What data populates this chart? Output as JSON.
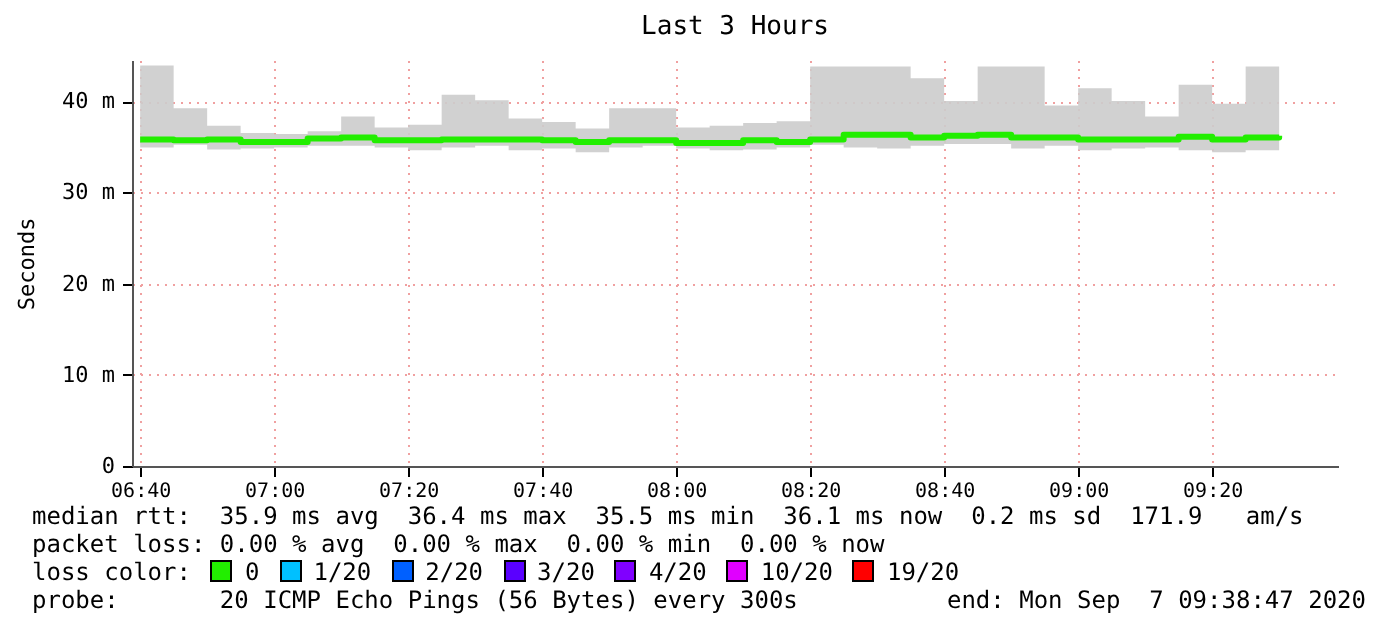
{
  "chart_data": {
    "type": "step",
    "title": "Last 3 Hours",
    "ylabel": "Seconds",
    "legend_title": "loss color:",
    "legend": "bottom",
    "grid": true,
    "x": [
      "2020-09-07T06:40",
      "2020-09-07T06:45",
      "2020-09-07T06:50",
      "2020-09-07T06:55",
      "2020-09-07T07:00",
      "2020-09-07T07:05",
      "2020-09-07T07:10",
      "2020-09-07T07:15",
      "2020-09-07T07:20",
      "2020-09-07T07:25",
      "2020-09-07T07:30",
      "2020-09-07T07:35",
      "2020-09-07T07:40",
      "2020-09-07T07:45",
      "2020-09-07T07:50",
      "2020-09-07T07:55",
      "2020-09-07T08:00",
      "2020-09-07T08:05",
      "2020-09-07T08:10",
      "2020-09-07T08:15",
      "2020-09-07T08:20",
      "2020-09-07T08:25",
      "2020-09-07T08:30",
      "2020-09-07T08:35",
      "2020-09-07T08:40",
      "2020-09-07T08:45",
      "2020-09-07T08:50",
      "2020-09-07T08:55",
      "2020-09-07T09:00",
      "2020-09-07T09:05",
      "2020-09-07T09:10",
      "2020-09-07T09:15",
      "2020-09-07T09:20",
      "2020-09-07T09:25",
      "2020-09-07T09:30"
    ],
    "xlim": [
      "2020-09-07T06:38:47",
      "2020-09-07T09:38:47"
    ],
    "xticks": [
      {
        "value": "2020-09-07T06:40",
        "label": "06:40"
      },
      {
        "value": "2020-09-07T07:00",
        "label": "07:00"
      },
      {
        "value": "2020-09-07T07:20",
        "label": "07:20"
      },
      {
        "value": "2020-09-07T07:40",
        "label": "07:40"
      },
      {
        "value": "2020-09-07T08:00",
        "label": "08:00"
      },
      {
        "value": "2020-09-07T08:20",
        "label": "08:20"
      },
      {
        "value": "2020-09-07T08:40",
        "label": "08:40"
      },
      {
        "value": "2020-09-07T09:00",
        "label": "09:00"
      },
      {
        "value": "2020-09-07T09:20",
        "label": "09:20"
      }
    ],
    "ylim": [
      0,
      44.5
    ],
    "yticks": [
      0,
      {
        "value": 10,
        "label": "10 m"
      },
      {
        "value": 20,
        "label": "20 m"
      },
      {
        "value": 30,
        "label": "30 m"
      },
      {
        "value": 40,
        "label": "40 m"
      }
    ],
    "series": [
      {
        "name": "0",
        "color": "#22ee00",
        "values": [
          35.8,
          35.7,
          35.8,
          35.5,
          35.5,
          35.9,
          36.0,
          35.7,
          35.7,
          35.8,
          35.8,
          35.8,
          35.7,
          35.5,
          35.7,
          35.7,
          35.4,
          35.4,
          35.7,
          35.5,
          35.8,
          36.3,
          36.3,
          36.0,
          36.2,
          36.3,
          36.0,
          36.0,
          35.8,
          35.8,
          35.8,
          36.1,
          35.8,
          36.0,
          36.2
        ],
        "lower": [
          34.9,
          35.2,
          34.7,
          34.8,
          34.9,
          35.1,
          35.1,
          34.9,
          34.6,
          34.9,
          35.1,
          34.6,
          34.8,
          34.4,
          34.9,
          35.1,
          34.8,
          34.6,
          34.7,
          34.9,
          35.2,
          34.9,
          34.8,
          35.1,
          35.3,
          35.3,
          34.8,
          35.1,
          34.6,
          34.8,
          34.9,
          34.6,
          34.4,
          34.6,
          34.9
        ],
        "upper": [
          43.9,
          39.2,
          37.3,
          36.5,
          36.4,
          36.7,
          38.3,
          37.1,
          37.4,
          40.7,
          40.1,
          38.1,
          37.7,
          37.0,
          39.2,
          39.2,
          37.1,
          37.3,
          37.6,
          37.8,
          43.8,
          43.8,
          43.8,
          42.5,
          40.0,
          43.8,
          43.8,
          39.5,
          41.4,
          40.0,
          38.3,
          41.8,
          39.7,
          43.8,
          41.0
        ]
      },
      {
        "name": "1/20",
        "color": "#00c0ff",
        "values": [
          null,
          null,
          null,
          null,
          null,
          null,
          null,
          null,
          null,
          null,
          null,
          null,
          null,
          null,
          null,
          null,
          null,
          null,
          null,
          null,
          null,
          null,
          null,
          null,
          null,
          null,
          null,
          null,
          null,
          null,
          null,
          null,
          null,
          null,
          null
        ]
      },
      {
        "name": "2/20",
        "color": "#0060ff",
        "values": [
          null,
          null,
          null,
          null,
          null,
          null,
          null,
          null,
          null,
          null,
          null,
          null,
          null,
          null,
          null,
          null,
          null,
          null,
          null,
          null,
          null,
          null,
          null,
          null,
          null,
          null,
          null,
          null,
          null,
          null,
          null,
          null,
          null,
          null,
          null
        ]
      },
      {
        "name": "3/20",
        "color": "#5a00ff",
        "values": [
          null,
          null,
          null,
          null,
          null,
          null,
          null,
          null,
          null,
          null,
          null,
          null,
          null,
          null,
          null,
          null,
          null,
          null,
          null,
          null,
          null,
          null,
          null,
          null,
          null,
          null,
          null,
          null,
          null,
          null,
          null,
          null,
          null,
          null,
          null
        ]
      },
      {
        "name": "4/20",
        "color": "#8000ff",
        "values": [
          null,
          null,
          null,
          null,
          null,
          null,
          null,
          null,
          null,
          null,
          null,
          null,
          null,
          null,
          null,
          null,
          null,
          null,
          null,
          null,
          null,
          null,
          null,
          null,
          null,
          null,
          null,
          null,
          null,
          null,
          null,
          null,
          null,
          null,
          null
        ]
      },
      {
        "name": "10/20",
        "color": "#e000ff",
        "values": [
          null,
          null,
          null,
          null,
          null,
          null,
          null,
          null,
          null,
          null,
          null,
          null,
          null,
          null,
          null,
          null,
          null,
          null,
          null,
          null,
          null,
          null,
          null,
          null,
          null,
          null,
          null,
          null,
          null,
          null,
          null,
          null,
          null,
          null,
          null
        ]
      },
      {
        "name": "19/20",
        "color": "#ff0000",
        "values": [
          null,
          null,
          null,
          null,
          null,
          null,
          null,
          null,
          null,
          null,
          null,
          null,
          null,
          null,
          null,
          null,
          null,
          null,
          null,
          null,
          null,
          null,
          null,
          null,
          null,
          null,
          null,
          null,
          null,
          null,
          null,
          null,
          null,
          null,
          null
        ]
      }
    ],
    "annotations": [
      "median rtt:  35.9 ms avg  36.4 ms max  35.5 ms min  36.1 ms now  0.2 ms sd  171.9   am/s",
      "packet loss: 0.00 % avg  0.00 % max  0.00 % min  0.00 % now",
      "probe:       20 ICMP Echo Pings (56 Bytes) every 300s",
      "end: Mon Sep  7 09:38:47 2020"
    ]
  }
}
